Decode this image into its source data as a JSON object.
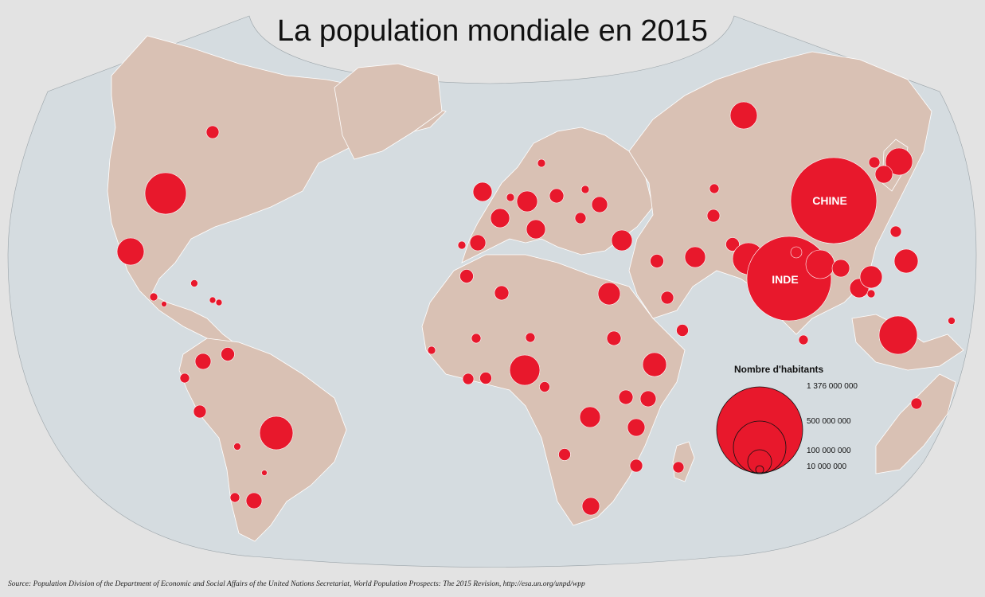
{
  "title": "La population mondiale en 2015",
  "source": "Source: Population Division of the Department of Economic and Social Affairs of the United Nations Secretariat, World Population Prospects: The 2015 Revision, http://esa.un.org/unpd/wpp",
  "colors": {
    "ocean": "#d5dce0",
    "land": "#d9c1b4",
    "border": "#ffffff",
    "bubble": "#e8182c",
    "background": "#e3e3e3"
  },
  "country_labels": {
    "china": "CHINE",
    "india": "INDE"
  },
  "legend": {
    "title": "Nombre d'habitants",
    "items": [
      {
        "label": "1 376 000 000",
        "value": 1376000000
      },
      {
        "label": "500 000 000",
        "value": 500000000
      },
      {
        "label": "100 000 000",
        "value": 100000000
      },
      {
        "label": "10 000 000",
        "value": 10000000
      }
    ]
  }
}
